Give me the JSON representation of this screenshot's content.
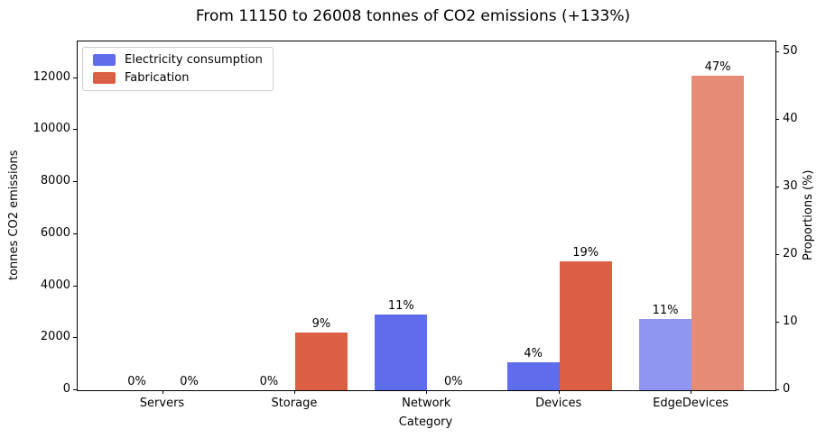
{
  "chart_data": {
    "type": "bar",
    "title": "From 11150 to 26008 tonnes of CO2 emissions (+133%)",
    "xlabel": "Category",
    "ylabel_left": "tonnes CO2 emissions",
    "ylabel_right": "Proportions (%)",
    "categories": [
      "Servers",
      "Storage",
      "Network",
      "Devices",
      "EdgeDevices"
    ],
    "series": [
      {
        "name": "Electricity consumption",
        "values_tonnes": [
          0,
          0,
          2900,
          1070,
          2750
        ],
        "pct_labels": [
          "0%",
          "0%",
          "11%",
          "4%",
          "11%"
        ],
        "colors": [
          "#5f6cec",
          "#5f6cec",
          "#5f6cec",
          "#5f6cec",
          "#8e96f2"
        ]
      },
      {
        "name": "Fabrication",
        "values_tonnes": [
          0,
          2214,
          0,
          4970,
          12104
        ],
        "pct_labels": [
          "0%",
          "9%",
          "0%",
          "19%",
          "47%"
        ],
        "colors": [
          "#db5f42",
          "#db5f42",
          "#db5f42",
          "#db5f42",
          "#e68b76"
        ]
      }
    ],
    "totals": {
      "from_tonnes": 11150,
      "to_tonnes": 26008,
      "change_pct": "+133%"
    },
    "left_axis": {
      "ticks": [
        0,
        2000,
        4000,
        6000,
        8000,
        10000,
        12000
      ],
      "max_tonnes": 13414
    },
    "right_axis": {
      "ticks": [
        0,
        10,
        20,
        30,
        40,
        50
      ],
      "max_pct": 51.57
    },
    "legend": {
      "position": "upper-left",
      "entries": [
        "Electricity consumption",
        "Fabrication"
      ],
      "swatch_colors": [
        "#5f6cec",
        "#db5f42"
      ]
    },
    "grid": false
  }
}
